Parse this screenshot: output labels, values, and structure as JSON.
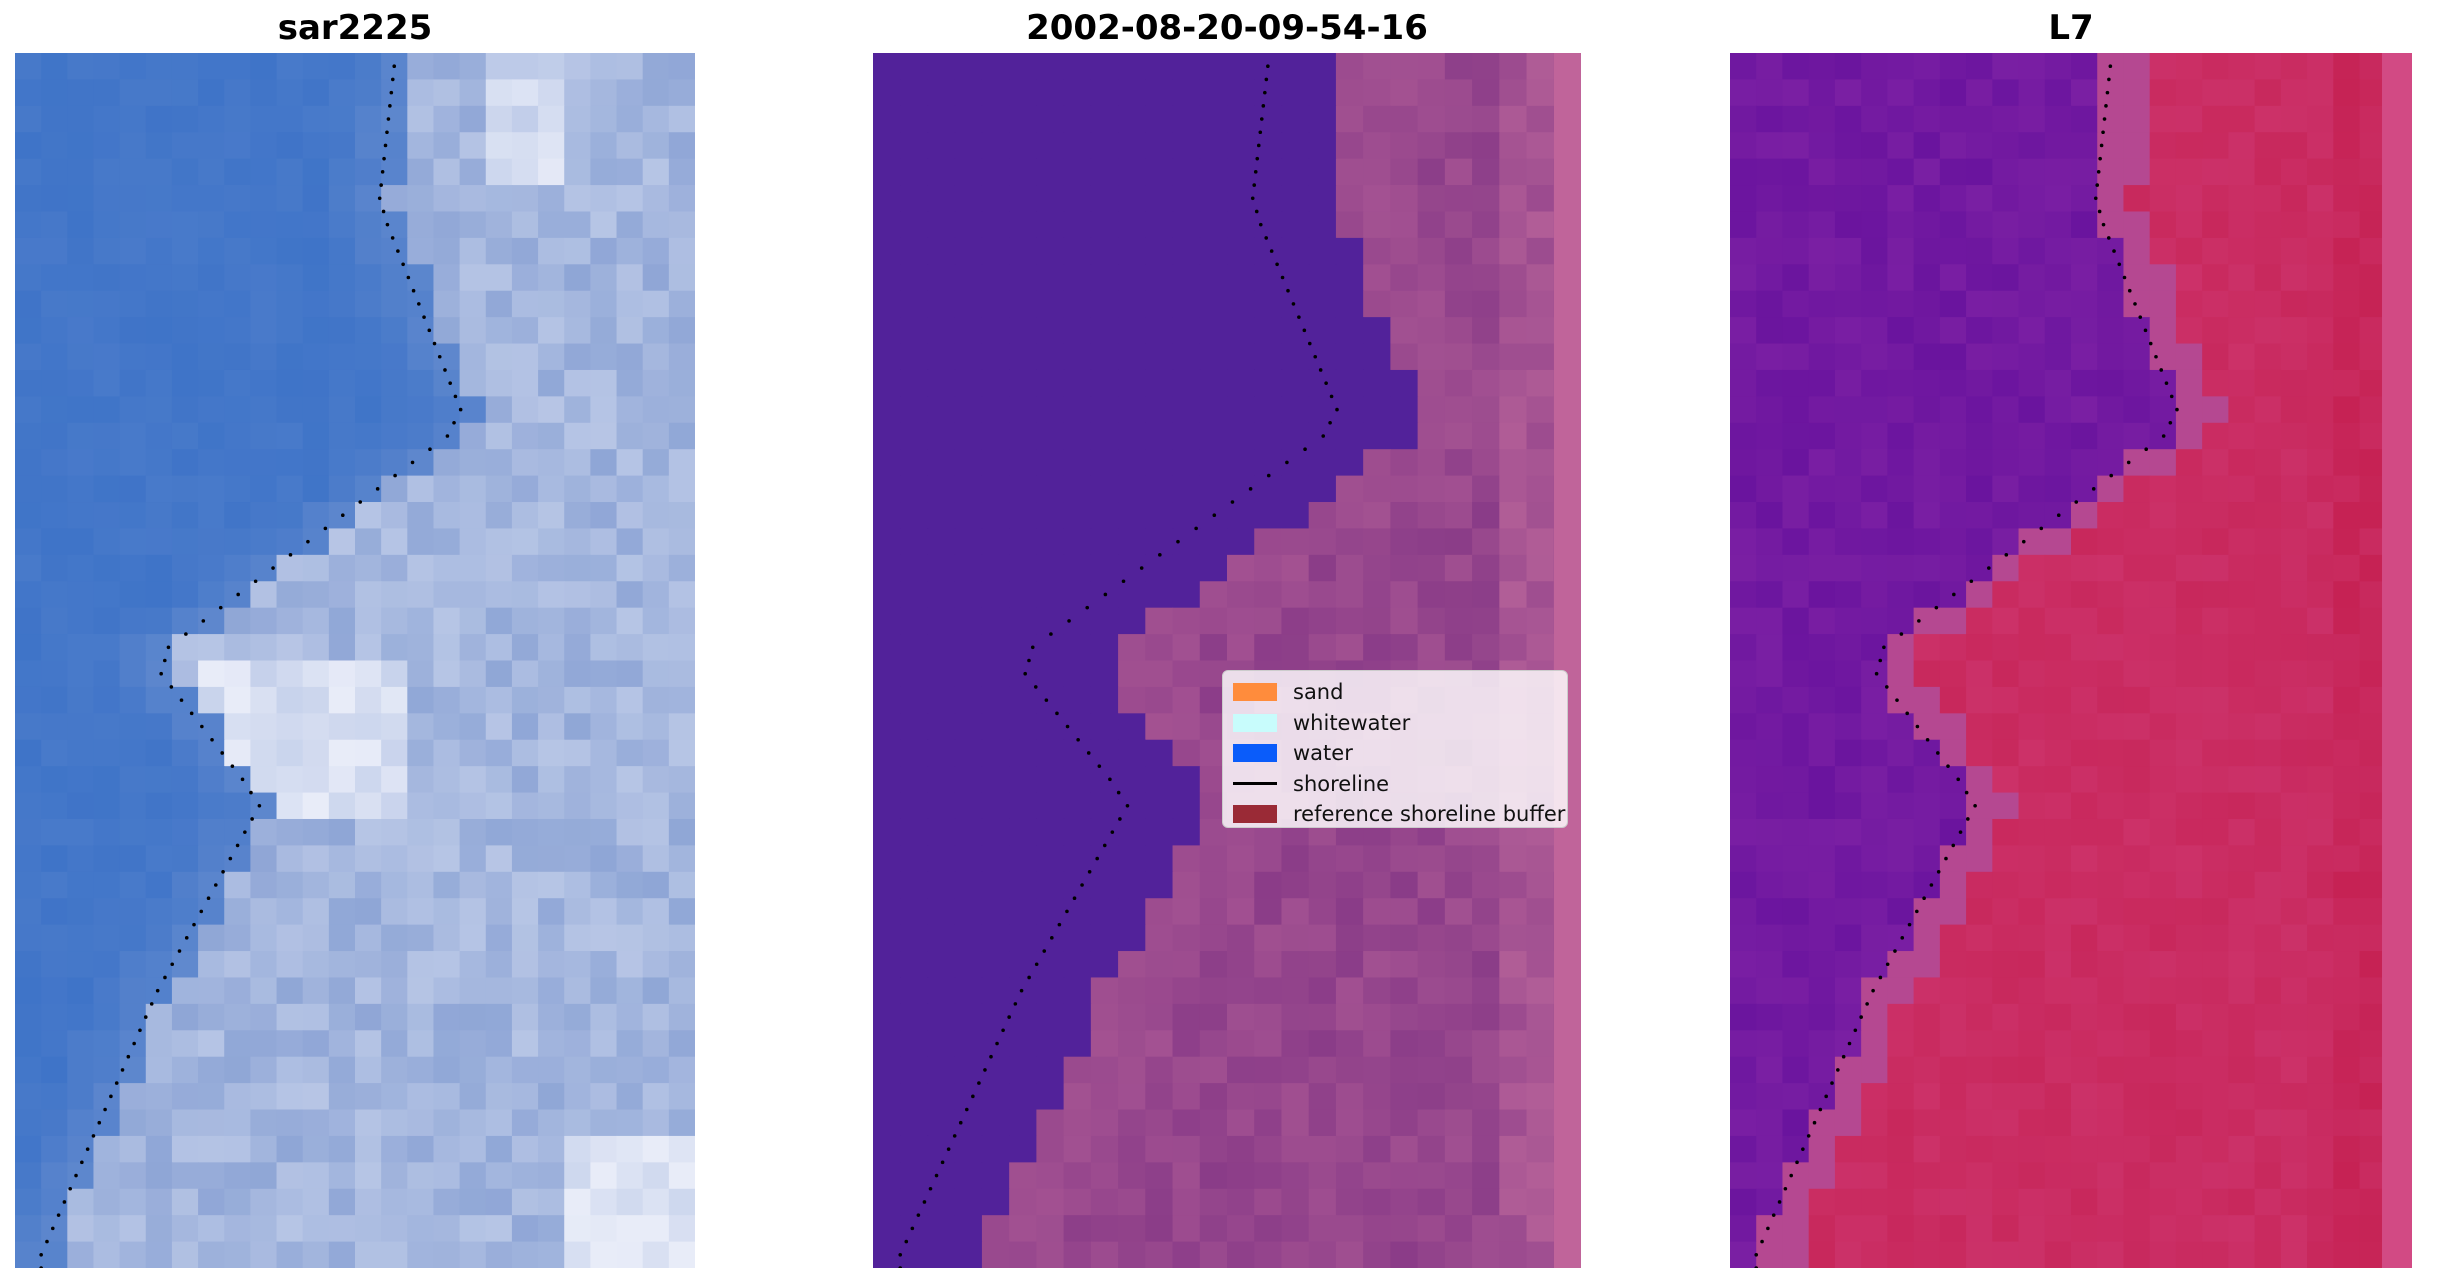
{
  "panels": [
    {
      "title": "sar2225",
      "kind": "rgb"
    },
    {
      "title": "2002-08-20-09-54-16",
      "kind": "classified"
    },
    {
      "title": "L7",
      "kind": "mndwi"
    }
  ],
  "legend": {
    "items": [
      {
        "label": "sand",
        "color": "#ff8c3c",
        "type": "patch"
      },
      {
        "label": "whitewater",
        "color": "#c8fcfc",
        "type": "patch"
      },
      {
        "label": "water",
        "color": "#0a5cfa",
        "type": "patch"
      },
      {
        "label": "shoreline",
        "color": "#000000",
        "type": "line"
      },
      {
        "label": "reference shoreline buffer",
        "color": "#9a2a36",
        "type": "patch"
      }
    ]
  },
  "colors": {
    "rgb_water": "#3f74c8",
    "rgb_land": "#8fa6d6",
    "rgb_bright": "#e8ecf8",
    "class_water": "#52229a",
    "class_buffer": "#8a3c88",
    "class_land": "#b46098",
    "mndwi_water": "#6a149e",
    "mndwi_land": "#c8285c",
    "shoreline": "#000000"
  }
}
